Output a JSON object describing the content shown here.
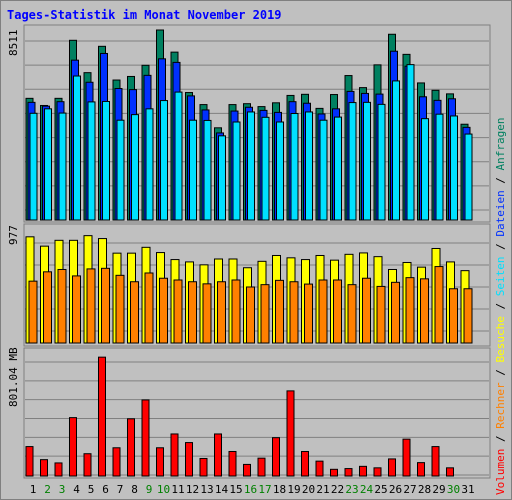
{
  "title": "Tages-Statistik im Monat November 2019",
  "colors": {
    "anfragen": "#008060",
    "dateien": "#0030ff",
    "seiten": "#00e0ff",
    "besuche": "#ffff00",
    "rechner": "#ff8000",
    "volumen": "#ff0000",
    "weekday": "#000000",
    "weekend": "#008000",
    "background": "#c0c0c0"
  },
  "chart_data": [
    {
      "type": "bar",
      "name": "hits-files-pages",
      "max_label": "8511",
      "ylim": [
        0,
        8511
      ],
      "categories": [
        "1",
        "2",
        "3",
        "4",
        "5",
        "6",
        "7",
        "8",
        "9",
        "10",
        "11",
        "12",
        "13",
        "14",
        "15",
        "16",
        "17",
        "18",
        "19",
        "20",
        "21",
        "22",
        "23",
        "24",
        "25",
        "26",
        "27",
        "28",
        "29",
        "30",
        "31"
      ],
      "series": [
        {
          "name": "Anfragen",
          "values": [
            5450,
            5130,
            5450,
            8050,
            6600,
            7780,
            6270,
            6430,
            6930,
            8511,
            7520,
            5710,
            5170,
            4130,
            5170,
            5210,
            5080,
            5250,
            5580,
            5630,
            5000,
            5620,
            6470,
            5930,
            6950,
            8320,
            7420,
            6140,
            5810,
            5650,
            4290
          ]
        },
        {
          "name": "Dateien",
          "values": [
            5270,
            5100,
            5300,
            7160,
            6170,
            7460,
            5890,
            5840,
            6480,
            7220,
            7060,
            5560,
            4930,
            3900,
            4880,
            5050,
            4910,
            4820,
            5300,
            5230,
            4750,
            4980,
            5760,
            5670,
            5640,
            7560,
            6890,
            5520,
            5360,
            5430,
            4150
          ]
        },
        {
          "name": "Seiten",
          "values": [
            4780,
            4980,
            4790,
            6450,
            5290,
            5310,
            4470,
            4720,
            4980,
            5350,
            5730,
            4470,
            4460,
            3770,
            4390,
            4840,
            4600,
            4390,
            4770,
            4840,
            4470,
            4610,
            5260,
            5270,
            5180,
            6230,
            6960,
            4540,
            4740,
            4660,
            3850
          ]
        }
      ],
      "legend": [
        "Anfragen",
        "Dateien",
        "Seiten"
      ]
    },
    {
      "type": "bar",
      "name": "visits-sites",
      "max_label": "977",
      "ylim": [
        0,
        977
      ],
      "categories": [
        "1",
        "2",
        "3",
        "4",
        "5",
        "6",
        "7",
        "8",
        "9",
        "10",
        "11",
        "12",
        "13",
        "14",
        "15",
        "16",
        "17",
        "18",
        "19",
        "20",
        "21",
        "22",
        "23",
        "24",
        "25",
        "26",
        "27",
        "28",
        "29",
        "30",
        "31"
      ],
      "series": [
        {
          "name": "Besuche",
          "values": [
            910,
            830,
            880,
            880,
            920,
            895,
            770,
            770,
            820,
            775,
            715,
            695,
            670,
            720,
            720,
            645,
            700,
            750,
            730,
            715,
            750,
            710,
            760,
            772,
            740,
            630,
            690,
            650,
            810,
            695,
            620
          ]
        },
        {
          "name": "Rechner",
          "values": [
            530,
            610,
            630,
            575,
            635,
            640,
            580,
            525,
            600,
            555,
            540,
            525,
            507,
            525,
            540,
            480,
            500,
            537,
            525,
            505,
            540,
            540,
            500,
            555,
            485,
            520,
            560,
            550,
            655,
            465,
            465
          ]
        }
      ],
      "legend": [
        "Besuche",
        "Rechner"
      ]
    },
    {
      "type": "bar",
      "name": "volume",
      "max_label": "801.04 MB",
      "ylim": [
        0,
        801.04
      ],
      "categories": [
        "1",
        "2",
        "3",
        "4",
        "5",
        "6",
        "7",
        "8",
        "9",
        "10",
        "11",
        "12",
        "13",
        "14",
        "15",
        "16",
        "17",
        "18",
        "19",
        "20",
        "21",
        "22",
        "23",
        "24",
        "25",
        "26",
        "27",
        "28",
        "29",
        "30",
        "31"
      ],
      "series": [
        {
          "name": "Volumen",
          "values": [
            198,
            110,
            88,
            393,
            150,
            800,
            190,
            385,
            512,
            190,
            283,
            225,
            118,
            283,
            165,
            78,
            120,
            258,
            573,
            165,
            100,
            45,
            50,
            65,
            55,
            115,
            248,
            90,
            198,
            55,
            0
          ]
        }
      ],
      "legend": [
        "Volumen"
      ]
    }
  ],
  "days": [
    "1",
    "2",
    "3",
    "4",
    "5",
    "6",
    "7",
    "8",
    "9",
    "10",
    "11",
    "12",
    "13",
    "14",
    "15",
    "16",
    "17",
    "18",
    "19",
    "20",
    "21",
    "22",
    "23",
    "24",
    "25",
    "26",
    "27",
    "28",
    "29",
    "30",
    "31"
  ],
  "weekend_days": [
    2,
    3,
    9,
    10,
    16,
    17,
    23,
    24,
    30
  ],
  "legend_labels": {
    "volumen": "Volumen",
    "rechner": "Rechner",
    "besuche": "Besuche",
    "seiten": "Seiten",
    "dateien": "Dateien",
    "anfragen": "Anfragen",
    "separator": " / "
  }
}
